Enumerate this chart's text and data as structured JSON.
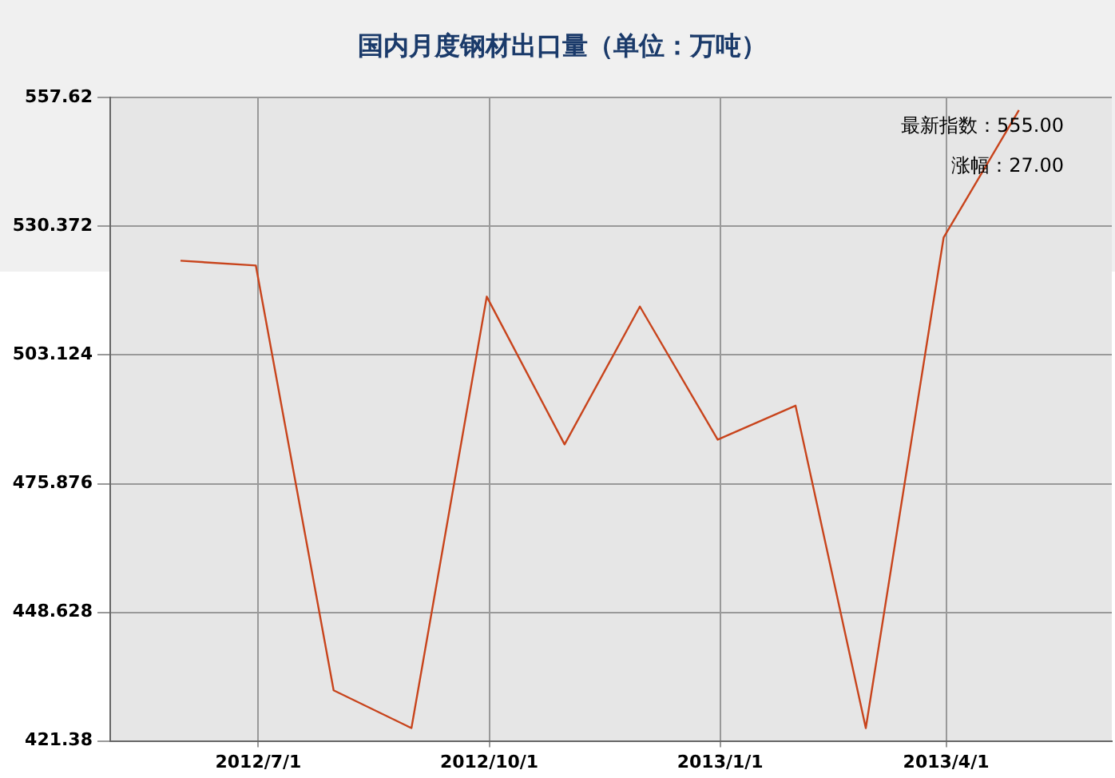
{
  "chart_data": {
    "type": "line",
    "title": "国内月度钢材出口量（单位：万吨）",
    "x": [
      "2012-05-31",
      "2012-06-30",
      "2012-07-31",
      "2012-08-31",
      "2012-09-30",
      "2012-10-31",
      "2012-11-30",
      "2012-12-31",
      "2013-01-31",
      "2013-02-28",
      "2013-03-31",
      "2013-04-30"
    ],
    "series": [
      {
        "color": "#c8441c",
        "values": [
          523.1,
          522.1,
          432.1,
          424.1,
          515.5,
          484.2,
          513.4,
          485.2,
          492.4,
          424.1,
          528,
          555
        ]
      }
    ],
    "xlim": [
      "2012-05-03",
      "2013-06-06"
    ],
    "xticks": [
      {
        "value": "2012-07-01",
        "label": "2012/7/1"
      },
      {
        "value": "2012-10-01",
        "label": "2012/10/1"
      },
      {
        "value": "2013-01-01",
        "label": "2013/1/1"
      },
      {
        "value": "2013-04-01",
        "label": "2013/4/1"
      }
    ],
    "ylim": [
      421.38,
      557.62
    ],
    "yticks": [
      421.38,
      448.628,
      475.876,
      503.124,
      530.372,
      557.62
    ],
    "grid": true,
    "marker": "none",
    "line_style": "solid",
    "annotations": [
      "最新指数：555.00",
      "涨幅：27.00"
    ]
  }
}
